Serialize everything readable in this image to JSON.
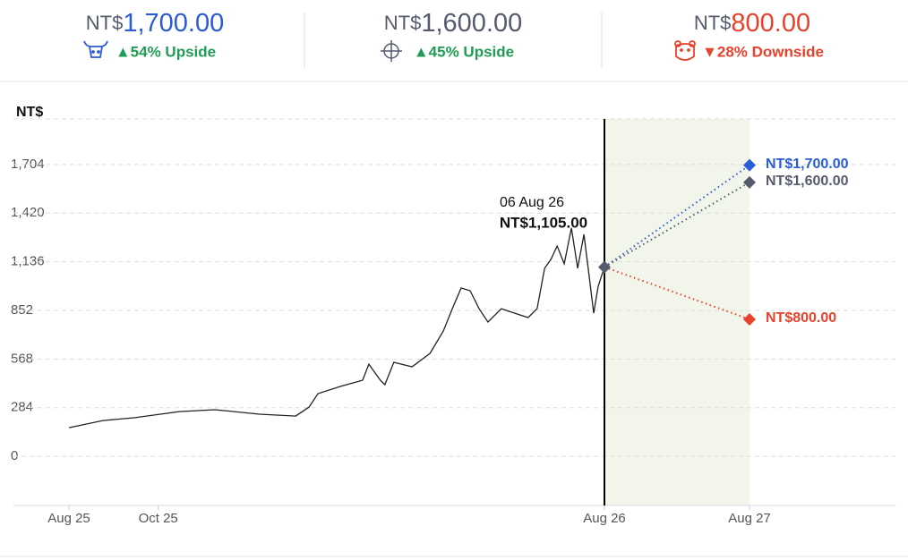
{
  "header": [
    {
      "currency": "NT$",
      "price": "1,700.00",
      "note": "▲54% Upside",
      "color": "#2b5bd7",
      "note_color": "#1f9d55"
    },
    {
      "currency": "NT$",
      "price": "1,600.00",
      "note": "▲45% Upside",
      "color": "#555a6e",
      "note_color": "#1f9d55"
    },
    {
      "currency": "NT$",
      "price": "800.00",
      "note": "▼28% Downside",
      "color": "#e8412c",
      "note_color": "#e8412c"
    }
  ],
  "chart_data": {
    "type": "line",
    "ylabel": "NT$",
    "ylim": [
      -287,
      1970
    ],
    "yticks": [
      0,
      284,
      568,
      852,
      {
        "value": 1136,
        "label": "1,136"
      },
      {
        "value": 1420,
        "label": "1,420"
      },
      {
        "value": 1704,
        "label": "1,704"
      }
    ],
    "xlim": [
      0,
      24
    ],
    "xticks": [
      {
        "value": 0,
        "label": "Aug 25"
      },
      {
        "value": 2,
        "label": "Oct 25"
      },
      {
        "value": 12,
        "label": "Aug 26"
      },
      {
        "value": 24,
        "label": "Aug 27"
      }
    ],
    "grid": true,
    "history": {
      "color": "#222222",
      "x": [
        0,
        0.76,
        1.46,
        2.47,
        3.27,
        4.27,
        5.08,
        5.38,
        5.58,
        6.08,
        6.58,
        6.72,
        6.98,
        7.08,
        7.28,
        7.69,
        8.09,
        8.39,
        8.59,
        8.79,
        8.99,
        9.19,
        9.39,
        9.69,
        9.99,
        10.29,
        10.49,
        10.66,
        10.8,
        10.94,
        11.1,
        11.26,
        11.4,
        11.54,
        11.66,
        11.76,
        11.86,
        12
      ],
      "values": [
        167,
        209,
        225,
        261,
        272,
        246,
        235,
        287,
        366,
        408,
        444,
        538,
        444,
        418,
        549,
        523,
        601,
        732,
        862,
        983,
        967,
        862,
        784,
        862,
        836,
        810,
        862,
        1098,
        1150,
        1228,
        1124,
        1333,
        1098,
        1296,
        1045,
        836,
        993,
        1105
      ]
    },
    "annotation": {
      "date": "06 Aug 26",
      "label": "NT$1,105.00"
    },
    "target_x": 24,
    "targets": [
      {
        "value": 1700,
        "value_label": "NT$1,700.00",
        "color": "#2b5bd7"
      },
      {
        "value": 1600,
        "value_label": "NT$1,600.00",
        "color": "#555a6e"
      },
      {
        "value": 800,
        "value_label": "NT$800.00",
        "color": "#e8412c"
      }
    ],
    "forecast_color": "#f2f6ea"
  }
}
